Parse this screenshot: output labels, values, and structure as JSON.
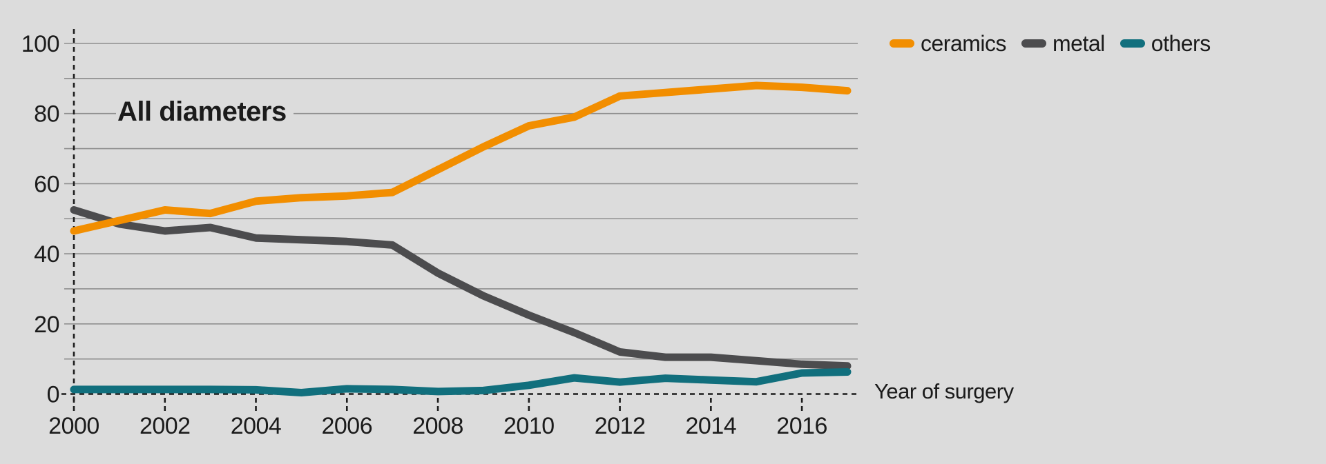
{
  "colors": {
    "background": "#DCDCDC",
    "gridline": "#8E8E8E",
    "axis": "#1C1C1C",
    "text": "#1B1B1B"
  },
  "legend": {
    "items": [
      {
        "label": "ceramics",
        "color": "#F28E00"
      },
      {
        "label": "metal",
        "color": "#4C4C4E"
      },
      {
        "label": "others",
        "color": "#116F7D"
      }
    ]
  },
  "chart_data": {
    "type": "line",
    "title": "All diameters",
    "xlabel": "Year of surgery",
    "ylabel": "",
    "x": [
      2000,
      2001,
      2002,
      2003,
      2004,
      2005,
      2006,
      2007,
      2008,
      2009,
      2010,
      2011,
      2012,
      2013,
      2014,
      2015,
      2016,
      2017
    ],
    "x_tick_labels": [
      "2000",
      "2002",
      "2004",
      "2006",
      "2008",
      "2010",
      "2012",
      "2014",
      "2016"
    ],
    "y_tick_labels": [
      "0",
      "20",
      "40",
      "60",
      "80",
      "100"
    ],
    "ylim": [
      0,
      100
    ],
    "grid_step": 10,
    "grid": true,
    "legend_position": "top-right",
    "series": [
      {
        "name": "ceramics",
        "color": "#F28E00",
        "values": [
          46.5,
          49.5,
          52.5,
          51.5,
          55,
          56,
          56.5,
          57.5,
          64,
          70.5,
          76.5,
          79,
          85,
          86,
          87,
          88,
          87.5,
          86.5
        ]
      },
      {
        "name": "metal",
        "color": "#4C4C4E",
        "values": [
          52.5,
          48.5,
          46.5,
          47.5,
          44.5,
          44,
          43.5,
          42.5,
          34.5,
          28,
          22.5,
          17.5,
          12,
          10.5,
          10.5,
          9.5,
          8.5,
          8
        ]
      },
      {
        "name": "others",
        "color": "#116F7D",
        "values": [
          1.3,
          1.3,
          1.3,
          1.3,
          1.2,
          0.4,
          1.5,
          1.3,
          0.7,
          1,
          2.5,
          4.6,
          3.4,
          4.5,
          4,
          3.5,
          6,
          6.3
        ]
      }
    ]
  }
}
